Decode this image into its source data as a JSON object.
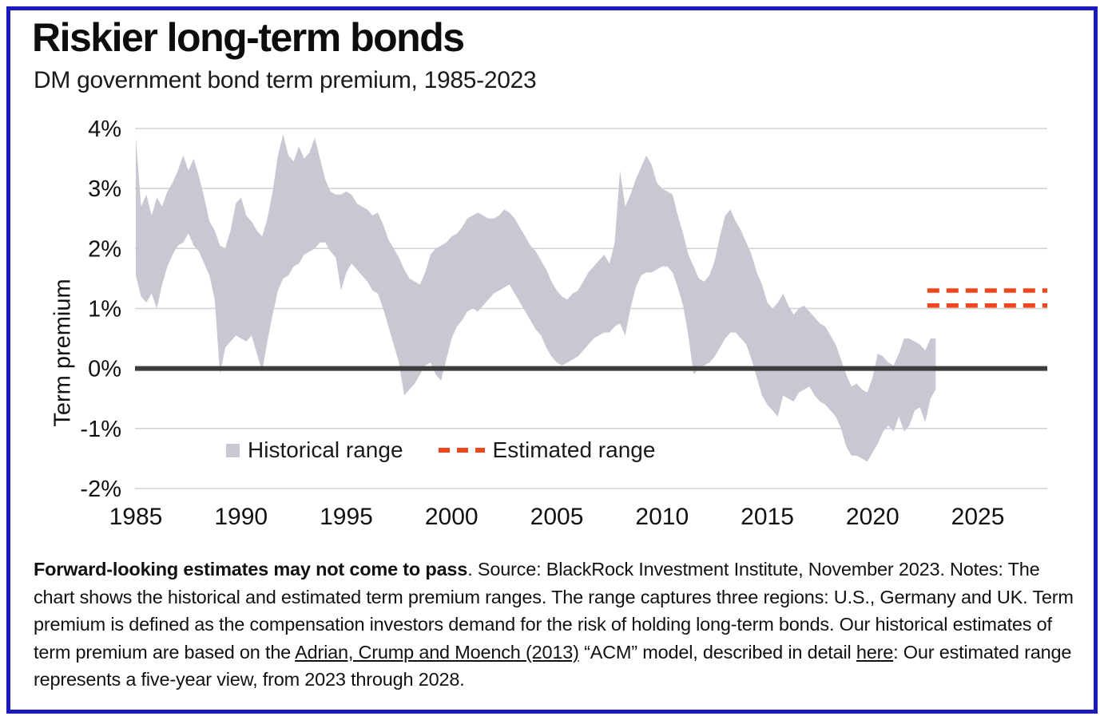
{
  "header": {
    "title": "Riskier long-term bonds",
    "subtitle": "DM government bond term premium, 1985-2023"
  },
  "colors": {
    "frame_blue": "#1b1bbd",
    "band_gray": "#c8c8d2",
    "estimated_orange": "#f0461e",
    "zero_line": "#3d3d3d",
    "gridline": "#d2d2d8",
    "text": "#111111"
  },
  "legend": {
    "items": [
      {
        "label": "Historical range",
        "swatch": "square"
      },
      {
        "label": "Estimated range",
        "swatch": "dashes"
      }
    ]
  },
  "chart_data": {
    "type": "area",
    "title": "Riskier long-term bonds",
    "subtitle": "DM government bond term premium, 1985-2023",
    "ylabel": "Term premium",
    "xlabel": "",
    "xlim": [
      1985,
      2028.3
    ],
    "ylim": [
      -2,
      4
    ],
    "grid": true,
    "legend_position": "inside-bottom-left",
    "x_ticks": [
      {
        "value": 1985,
        "label": "1985"
      },
      {
        "value": 1990,
        "label": "1990"
      },
      {
        "value": 1995,
        "label": "1995"
      },
      {
        "value": 2000,
        "label": "2000"
      },
      {
        "value": 2005,
        "label": "2005"
      },
      {
        "value": 2010,
        "label": "2010"
      },
      {
        "value": 2015,
        "label": "2015"
      },
      {
        "value": 2020,
        "label": "2020"
      },
      {
        "value": 2025,
        "label": "2025"
      }
    ],
    "y_ticks": [
      {
        "value": 4,
        "label": "4%"
      },
      {
        "value": 3,
        "label": "3%"
      },
      {
        "value": 2,
        "label": "2%"
      },
      {
        "value": 1,
        "label": "1%"
      },
      {
        "value": 0,
        "label": "0%"
      },
      {
        "value": -1,
        "label": "-1%"
      },
      {
        "value": -2,
        "label": "-2%"
      }
    ],
    "series": [
      {
        "name": "Historical range",
        "kind": "min-max band",
        "unit": "%",
        "points_format": [
          "year",
          "low",
          "high"
        ],
        "points": [
          [
            1985,
            1.55,
            3.85
          ],
          [
            1985.25,
            1.2,
            2.7
          ],
          [
            1985.5,
            1.1,
            2.9
          ],
          [
            1985.75,
            1.25,
            2.55
          ],
          [
            1986,
            1.0,
            2.85
          ],
          [
            1986.25,
            1.4,
            2.7
          ],
          [
            1986.5,
            1.7,
            2.95
          ],
          [
            1986.75,
            1.9,
            3.1
          ],
          [
            1987,
            2.05,
            3.3
          ],
          [
            1987.25,
            2.1,
            3.55
          ],
          [
            1987.5,
            2.25,
            3.3
          ],
          [
            1987.75,
            2.05,
            3.5
          ],
          [
            1988,
            1.95,
            3.2
          ],
          [
            1988.25,
            1.75,
            2.85
          ],
          [
            1988.5,
            1.55,
            2.45
          ],
          [
            1988.75,
            1.15,
            2.3
          ],
          [
            1989,
            -0.1,
            2.05
          ],
          [
            1989.25,
            0.35,
            2.0
          ],
          [
            1989.5,
            0.45,
            2.3
          ],
          [
            1989.75,
            0.55,
            2.75
          ],
          [
            1990,
            0.5,
            2.85
          ],
          [
            1990.25,
            0.45,
            2.55
          ],
          [
            1990.5,
            0.55,
            2.45
          ],
          [
            1990.75,
            0.25,
            2.3
          ],
          [
            1991,
            -0.05,
            2.2
          ],
          [
            1991.25,
            0.45,
            2.5
          ],
          [
            1991.5,
            0.9,
            2.95
          ],
          [
            1991.75,
            1.3,
            3.55
          ],
          [
            1992,
            1.5,
            3.9
          ],
          [
            1992.25,
            1.55,
            3.55
          ],
          [
            1992.5,
            1.7,
            3.45
          ],
          [
            1992.75,
            1.75,
            3.7
          ],
          [
            1993,
            1.9,
            3.5
          ],
          [
            1993.25,
            1.95,
            3.6
          ],
          [
            1993.5,
            2.0,
            3.85
          ],
          [
            1993.75,
            2.1,
            3.5
          ],
          [
            1994,
            2.1,
            3.15
          ],
          [
            1994.25,
            1.95,
            2.95
          ],
          [
            1994.5,
            1.85,
            2.9
          ],
          [
            1994.75,
            1.3,
            2.9
          ],
          [
            1995,
            1.6,
            2.95
          ],
          [
            1995.25,
            1.75,
            2.9
          ],
          [
            1995.5,
            1.65,
            2.75
          ],
          [
            1995.75,
            1.55,
            2.7
          ],
          [
            1996,
            1.45,
            2.65
          ],
          [
            1996.25,
            1.3,
            2.55
          ],
          [
            1996.5,
            1.25,
            2.6
          ],
          [
            1996.75,
            1.0,
            2.4
          ],
          [
            1997,
            0.7,
            2.15
          ],
          [
            1997.25,
            0.4,
            2.0
          ],
          [
            1997.5,
            0.1,
            1.85
          ],
          [
            1997.75,
            -0.45,
            1.65
          ],
          [
            1998,
            -0.35,
            1.5
          ],
          [
            1998.25,
            -0.25,
            1.45
          ],
          [
            1998.5,
            -0.1,
            1.4
          ],
          [
            1998.75,
            0.05,
            1.6
          ],
          [
            1999,
            0.1,
            1.9
          ],
          [
            1999.25,
            -0.1,
            2.0
          ],
          [
            1999.5,
            -0.2,
            2.05
          ],
          [
            1999.75,
            0.15,
            2.1
          ],
          [
            2000,
            0.5,
            2.2
          ],
          [
            2000.25,
            0.7,
            2.25
          ],
          [
            2000.5,
            0.8,
            2.35
          ],
          [
            2000.75,
            0.95,
            2.5
          ],
          [
            2001,
            1.0,
            2.55
          ],
          [
            2001.25,
            0.95,
            2.6
          ],
          [
            2001.5,
            1.05,
            2.55
          ],
          [
            2001.75,
            1.15,
            2.5
          ],
          [
            2002,
            1.25,
            2.5
          ],
          [
            2002.25,
            1.3,
            2.55
          ],
          [
            2002.5,
            1.35,
            2.65
          ],
          [
            2002.75,
            1.4,
            2.6
          ],
          [
            2003,
            1.25,
            2.5
          ],
          [
            2003.25,
            1.1,
            2.35
          ],
          [
            2003.5,
            0.95,
            2.2
          ],
          [
            2003.75,
            0.8,
            2.05
          ],
          [
            2004,
            0.65,
            1.95
          ],
          [
            2004.25,
            0.55,
            1.8
          ],
          [
            2004.5,
            0.35,
            1.65
          ],
          [
            2004.75,
            0.2,
            1.45
          ],
          [
            2005,
            0.1,
            1.3
          ],
          [
            2005.25,
            0.05,
            1.2
          ],
          [
            2005.5,
            0.1,
            1.15
          ],
          [
            2005.75,
            0.15,
            1.25
          ],
          [
            2006,
            0.2,
            1.3
          ],
          [
            2006.25,
            0.3,
            1.45
          ],
          [
            2006.5,
            0.4,
            1.6
          ],
          [
            2006.75,
            0.5,
            1.7
          ],
          [
            2007,
            0.55,
            1.8
          ],
          [
            2007.25,
            0.6,
            1.9
          ],
          [
            2007.5,
            0.6,
            1.75
          ],
          [
            2007.75,
            0.7,
            2.1
          ],
          [
            2008,
            0.75,
            3.3
          ],
          [
            2008.25,
            0.55,
            2.7
          ],
          [
            2008.5,
            1.0,
            2.9
          ],
          [
            2008.75,
            1.35,
            3.15
          ],
          [
            2009,
            1.55,
            3.35
          ],
          [
            2009.25,
            1.6,
            3.55
          ],
          [
            2009.5,
            1.6,
            3.4
          ],
          [
            2009.75,
            1.65,
            3.1
          ],
          [
            2010,
            1.7,
            3.0
          ],
          [
            2010.25,
            1.7,
            2.95
          ],
          [
            2010.5,
            1.6,
            2.9
          ],
          [
            2010.75,
            1.35,
            2.55
          ],
          [
            2011,
            1.05,
            2.25
          ],
          [
            2011.25,
            0.55,
            1.9
          ],
          [
            2011.5,
            -0.1,
            1.7
          ],
          [
            2011.75,
            0.0,
            1.5
          ],
          [
            2012,
            0.05,
            1.45
          ],
          [
            2012.25,
            0.1,
            1.55
          ],
          [
            2012.5,
            0.2,
            1.8
          ],
          [
            2012.75,
            0.35,
            2.2
          ],
          [
            2013,
            0.5,
            2.55
          ],
          [
            2013.25,
            0.6,
            2.65
          ],
          [
            2013.5,
            0.6,
            2.45
          ],
          [
            2013.75,
            0.5,
            2.3
          ],
          [
            2014,
            0.4,
            2.1
          ],
          [
            2014.25,
            0.15,
            1.9
          ],
          [
            2014.5,
            -0.15,
            1.6
          ],
          [
            2014.75,
            -0.45,
            1.4
          ],
          [
            2015,
            -0.6,
            1.1
          ],
          [
            2015.25,
            -0.7,
            1.0
          ],
          [
            2015.5,
            -0.8,
            1.1
          ],
          [
            2015.75,
            -0.45,
            1.25
          ],
          [
            2016,
            -0.5,
            1.05
          ],
          [
            2016.25,
            -0.55,
            0.9
          ],
          [
            2016.5,
            -0.4,
            1.0
          ],
          [
            2016.75,
            -0.35,
            1.05
          ],
          [
            2017,
            -0.3,
            0.95
          ],
          [
            2017.25,
            -0.45,
            0.85
          ],
          [
            2017.5,
            -0.55,
            0.75
          ],
          [
            2017.75,
            -0.6,
            0.7
          ],
          [
            2018,
            -0.7,
            0.55
          ],
          [
            2018.25,
            -0.8,
            0.4
          ],
          [
            2018.5,
            -1.0,
            0.15
          ],
          [
            2018.75,
            -1.3,
            -0.1
          ],
          [
            2019,
            -1.45,
            -0.3
          ],
          [
            2019.25,
            -1.45,
            -0.25
          ],
          [
            2019.5,
            -1.5,
            -0.35
          ],
          [
            2019.75,
            -1.55,
            -0.4
          ],
          [
            2020,
            -1.4,
            -0.15
          ],
          [
            2020.25,
            -1.25,
            0.25
          ],
          [
            2020.5,
            -1.05,
            0.2
          ],
          [
            2020.75,
            -0.95,
            0.1
          ],
          [
            2021,
            -1.05,
            0.05
          ],
          [
            2021.25,
            -0.8,
            0.25
          ],
          [
            2021.5,
            -1.05,
            0.5
          ],
          [
            2021.75,
            -0.95,
            0.5
          ],
          [
            2022,
            -0.7,
            0.45
          ],
          [
            2022.25,
            -0.65,
            0.4
          ],
          [
            2022.5,
            -0.9,
            0.3
          ],
          [
            2022.75,
            -0.5,
            0.5
          ],
          [
            2023,
            -0.35,
            0.5
          ]
        ]
      }
    ],
    "estimated_range": {
      "name": "Estimated range",
      "low": 1.05,
      "high": 1.3,
      "from_year": 2023,
      "to_year": 2028,
      "style": "dashed-orange-horizontal-lines"
    },
    "zero_line": {
      "value": 0,
      "style": "thick-dark"
    }
  },
  "footnote": {
    "segments": [
      {
        "text": "Forward-looking estimates may not come to pass"
      },
      {
        "text": ". Source: BlackRock Investment Institute, November 2023. Notes: The chart shows the historical and estimated term premium ranges. The range captures three regions: U.S., Germany and UK. Term premium is defined as the compensation investors demand for the risk of holding long-term bonds. Our historical estimates of term premium are based on the "
      },
      {
        "text": "Adrian, Crump and Moench (2013)"
      },
      {
        "text": " “ACM” model, described in detail "
      },
      {
        "text": "here"
      },
      {
        "text": ": Our estimated range represents a five-year view, from 2023 through 2028."
      }
    ]
  }
}
